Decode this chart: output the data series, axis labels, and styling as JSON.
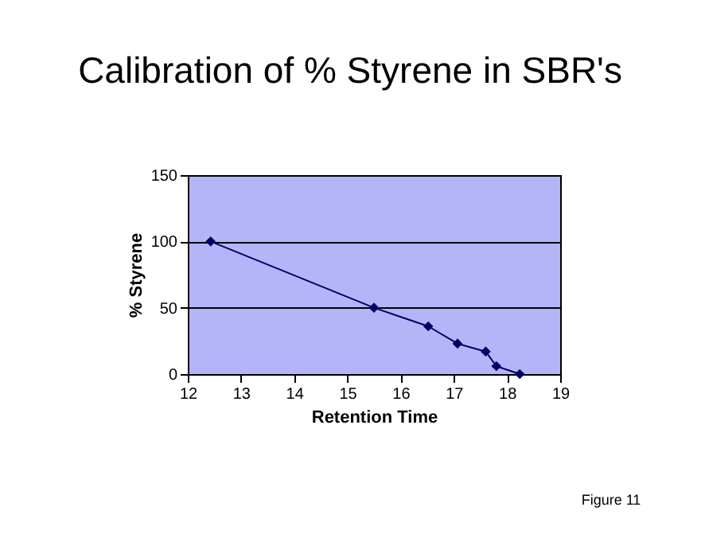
{
  "chart_data": {
    "type": "line",
    "title": "Calibration of % Styrene in SBR's",
    "xlabel": "Retention Time",
    "ylabel": "% Styrene",
    "x": [
      12.43,
      15.5,
      16.52,
      17.07,
      17.6,
      17.8,
      18.24
    ],
    "series": [
      {
        "color": "#000066",
        "values": [
          100,
          50,
          36,
          23,
          17,
          6,
          0
        ]
      }
    ],
    "xlim": [
      12,
      19
    ],
    "xticks": [
      12,
      13,
      14,
      15,
      16,
      17,
      18,
      19
    ],
    "ylim": [
      0,
      150
    ],
    "yticks": [
      0,
      50,
      100,
      150
    ],
    "grid": "y",
    "marker": "diamond",
    "line_style": "solid",
    "legend": false,
    "annotations": [
      "Figure 11"
    ]
  }
}
